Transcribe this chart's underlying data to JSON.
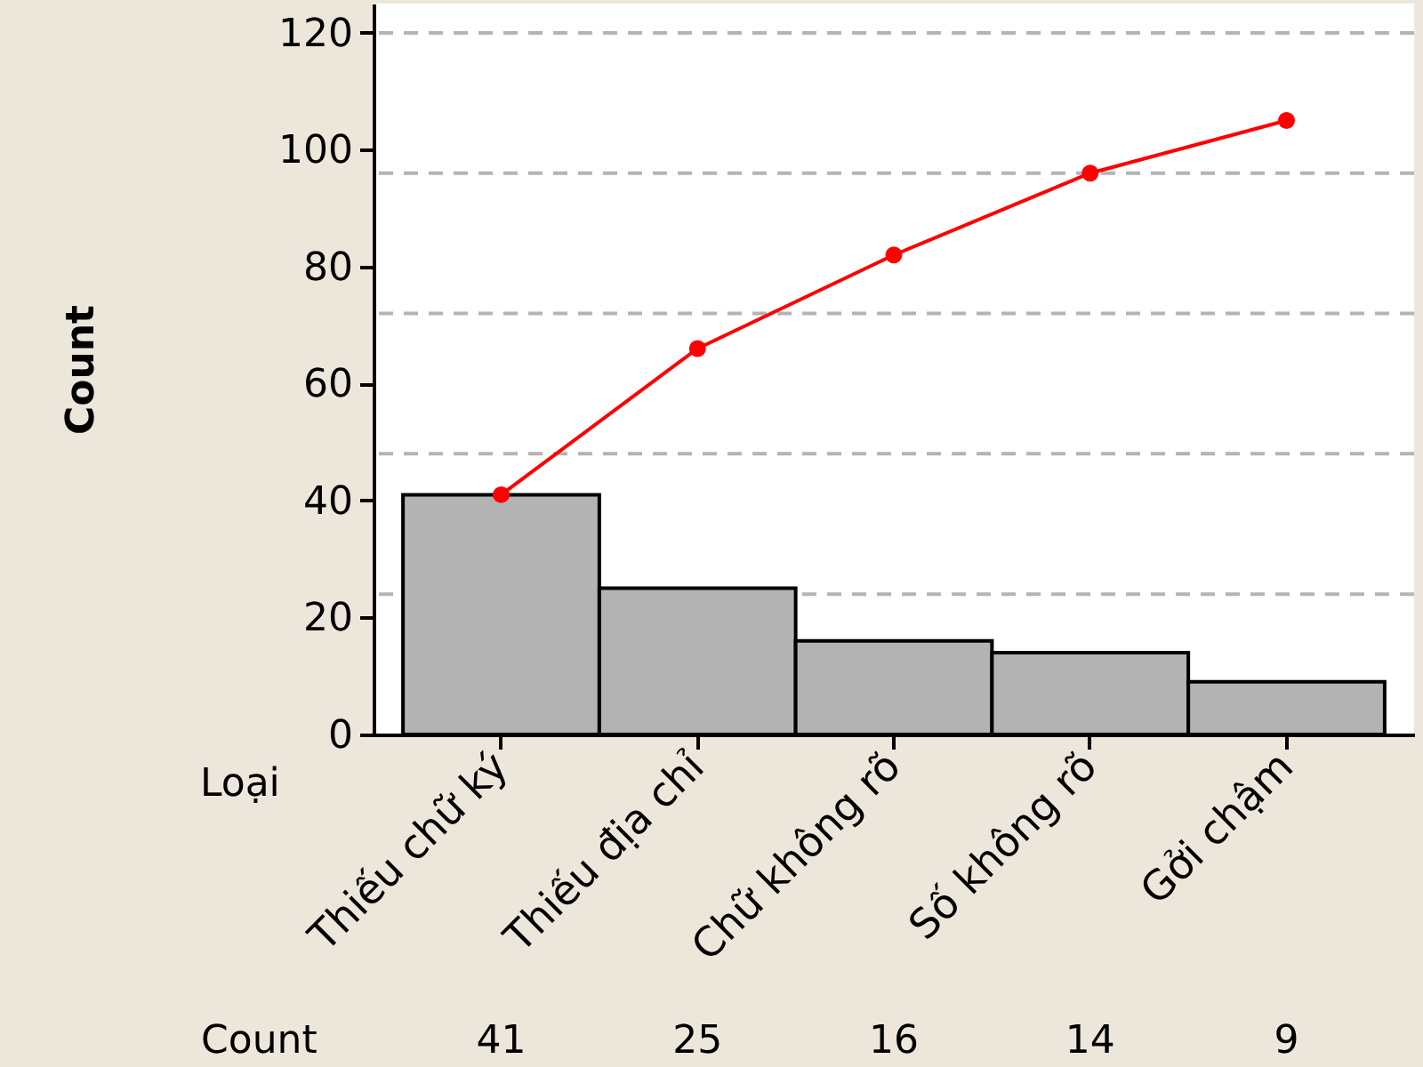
{
  "chart_data": {
    "type": "bar",
    "xlabel": "Loại",
    "ylabel": "Count",
    "categories": [
      "Thiếu chữ ký",
      "Thiếu địa chỉ",
      "Chữ không rõ",
      "Số không rõ",
      "Gởi chậm"
    ],
    "series": [
      {
        "color": "#b3b3b3",
        "values": [
          41,
          25,
          16,
          14,
          9
        ],
        "value_labels": [
          "41",
          "25",
          "16",
          "14",
          "9"
        ]
      },
      {
        "type": "line",
        "color": "#ff0000",
        "values": [
          41,
          66,
          82,
          96,
          105
        ]
      }
    ],
    "ylim": [
      0,
      125
    ],
    "yticks": [
      0,
      20,
      40,
      60,
      80,
      100,
      120
    ],
    "ref_lines": [
      {
        "axis": "y",
        "value": 24,
        "color": "#b4b4b4",
        "line_style": "dashed"
      },
      {
        "axis": "y",
        "value": 48,
        "color": "#b4b4b4",
        "line_style": "dashed"
      },
      {
        "axis": "y",
        "value": 72,
        "color": "#b4b4b4",
        "line_style": "dashed"
      },
      {
        "axis": "y",
        "value": 96,
        "color": "#b4b4b4",
        "line_style": "dashed"
      },
      {
        "axis": "y",
        "value": 120,
        "color": "#b4b4b4",
        "line_style": "dashed"
      }
    ],
    "marker": "circle",
    "annotations": [
      "Count"
    ]
  }
}
